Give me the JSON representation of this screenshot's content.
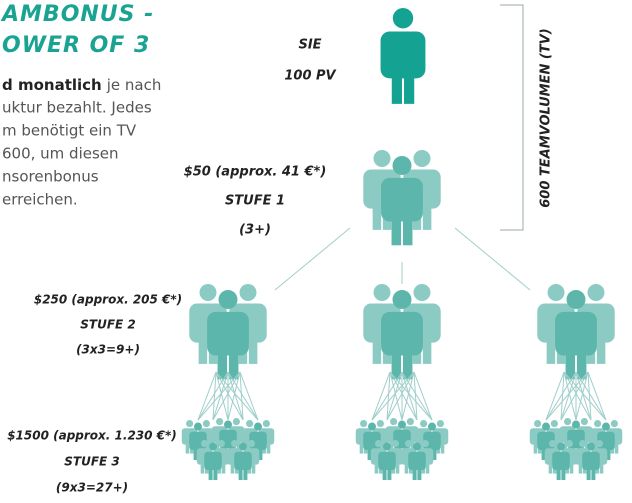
{
  "heading": [
    "AMBONUS -",
    "OWER OF 3"
  ],
  "body": {
    "first_bold": "d monatlich",
    "first_rest": "je nach",
    "lines": [
      "uktur bezahlt. Jedes",
      "m benötigt ein TV",
      "600, um diesen",
      "nsorenbonus",
      "erreichen."
    ]
  },
  "levels": [
    {
      "lines": [
        "SIE",
        "100 PV"
      ]
    },
    {
      "lines": [
        "$50 (approx. 41 €*)",
        "STUFE 1",
        "(3+)"
      ]
    },
    {
      "lines": [
        "$250 (approx. 205 €*)",
        "STUFE 2",
        "(3x3=9+)"
      ]
    },
    {
      "lines": [
        "$1500 (approx. 1.230 €*)",
        "STUFE 3",
        "(9x3=27+)"
      ]
    }
  ],
  "team_volume": "600 TEAMVOLUMEN (TV)"
}
